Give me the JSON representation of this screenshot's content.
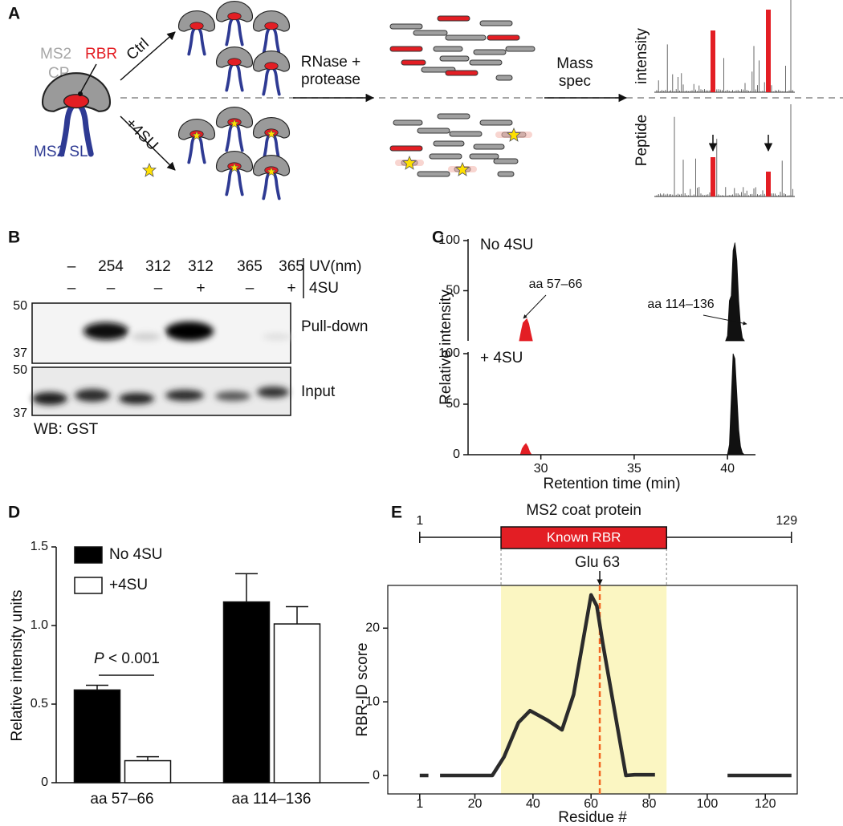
{
  "figure": {
    "panel_labels": [
      "A",
      "B",
      "C",
      "D",
      "E"
    ]
  },
  "panel_a": {
    "ms2": "MS2",
    "cp": "CP",
    "rbr": "RBR",
    "ms2_sl": "MS2 SL",
    "ctrl": "Ctrl",
    "plus_4su": "+4SU",
    "rnase": "RNase +",
    "protease": "protease",
    "mass": "Mass",
    "spec": "spec",
    "peptide": "Peptide",
    "intensity": "intensity"
  },
  "panel_b": {
    "uv": [
      "–",
      "254",
      "312",
      "312",
      "365",
      "365"
    ],
    "uv_label": "UV(nm)",
    "su": [
      "–",
      "–",
      "–",
      "+",
      "–",
      "+"
    ],
    "su_label": "4SU",
    "pull_down_markers": [
      "50",
      "37"
    ],
    "input_markers": [
      "50",
      "37"
    ],
    "blot_labels": [
      "Pull-down",
      "Input"
    ],
    "footer": "WB: GST"
  },
  "chart_data": [
    {
      "type": "area",
      "x_label": "Retention time (min)",
      "y_label": "Relative intensity",
      "xlim": [
        26.1,
        41.5
      ],
      "xticks": [
        30,
        35,
        40
      ],
      "panels": [
        {
          "label": "No 4SU",
          "ylim": [
            0,
            100
          ],
          "yticks": [
            50,
            100
          ],
          "series": [
            {
              "color": "#e31e24",
              "x": [
                28.85,
                28.95,
                29.05,
                29.15,
                29.25,
                29.35,
                29.45,
                29.55
              ],
              "values": [
                0,
                10,
                18,
                20,
                22,
                17,
                8,
                0
              ]
            },
            {
              "color": "#111111",
              "x": [
                39.9,
                40.0,
                40.1,
                40.2,
                40.3,
                40.4,
                40.5,
                40.6,
                40.7,
                40.8,
                40.9
              ],
              "values": [
                0,
                5,
                40,
                45,
                90,
                98,
                80,
                40,
                15,
                3,
                0
              ]
            }
          ]
        },
        {
          "label": "+ 4SU",
          "ylim": [
            0,
            100
          ],
          "yticks": [
            0,
            50,
            100
          ],
          "series": [
            {
              "color": "#e31e24",
              "x": [
                28.9,
                29.0,
                29.1,
                29.2,
                29.3,
                29.4,
                29.5
              ],
              "values": [
                0,
                6,
                9,
                11,
                8,
                3,
                0
              ]
            },
            {
              "color": "#111111",
              "x": [
                40.0,
                40.1,
                40.2,
                40.3,
                40.4,
                40.5,
                40.6,
                40.7,
                40.8,
                40.9
              ],
              "values": [
                0,
                10,
                55,
                100,
                95,
                60,
                25,
                8,
                2,
                0
              ]
            }
          ]
        }
      ],
      "annotations": [
        "aa 57–66",
        "aa 114–136"
      ]
    },
    {
      "type": "bar",
      "y_label": "Relative intensity units",
      "categories": [
        "aa 57–66",
        "aa 114–136"
      ],
      "ylim": [
        0,
        1.5
      ],
      "yticks": [
        0,
        0.5,
        {
          "value": 1,
          "label": "1.0"
        },
        1.5
      ],
      "series": [
        {
          "name": "No 4SU",
          "color": "#000000",
          "values": [
            0.59,
            1.15
          ],
          "errors": [
            0.03,
            0.18
          ]
        },
        {
          "name": "+4SU",
          "color": "#ffffff",
          "values": [
            0.14,
            1.01
          ],
          "errors": [
            0.025,
            0.11
          ]
        }
      ],
      "annotation": {
        "italic": "P",
        "text": " < 0.001"
      }
    },
    {
      "type": "line",
      "title": "MS2 coat protein",
      "x_label": "Residue #",
      "y_label": "RBR-ID score",
      "x": [
        1,
        4,
        5,
        8,
        26,
        30,
        35,
        39,
        45,
        50,
        54,
        60,
        62,
        64,
        72,
        75,
        82,
        85,
        107,
        129
      ],
      "series": [
        {
          "color": "#2b2b2b",
          "values": [
            0,
            0,
            null,
            0,
            0,
            2.5,
            7.2,
            8.8,
            7.5,
            6.2,
            11,
            24.5,
            23,
            18,
            0,
            0.1,
            0.1,
            null,
            0,
            0
          ]
        }
      ],
      "xlim": [
        -10,
        131
      ],
      "ylim": [
        -2.5,
        25.8
      ],
      "xticks": [
        1,
        20,
        40,
        60,
        80,
        100,
        120
      ],
      "yticks": [
        0,
        10,
        20
      ],
      "protein_range": [
        1,
        129
      ],
      "region": {
        "label": "Known RBR",
        "range": [
          29,
          86
        ],
        "color": "#e31e24",
        "shade": "#fbf6c2"
      },
      "marker": {
        "label": "Glu 63",
        "value": 63,
        "color": "#f26522"
      }
    }
  ]
}
